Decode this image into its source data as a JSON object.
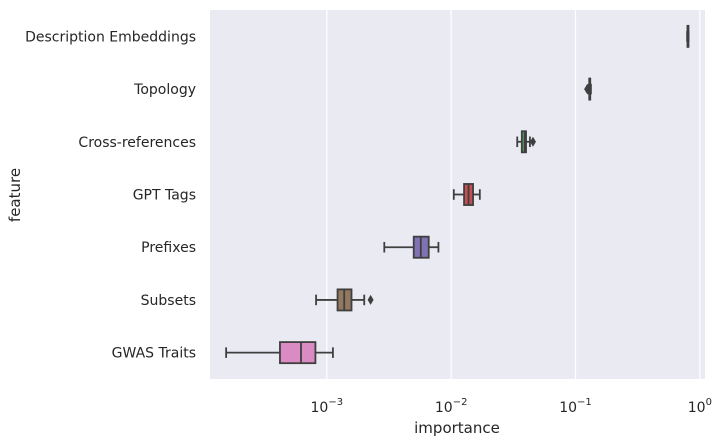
{
  "chart_data": {
    "type": "box",
    "orientation": "horizontal",
    "xscale": "log",
    "xlabel": "importance",
    "ylabel": "feature",
    "xlim": [
      0.000115,
      1.1
    ],
    "grid": true,
    "x_ticks": [
      {
        "base": "10",
        "exp": "−3",
        "value": 0.001
      },
      {
        "base": "10",
        "exp": "−2",
        "value": 0.01
      },
      {
        "base": "10",
        "exp": "−1",
        "value": 0.1
      },
      {
        "base": "10",
        "exp": "0",
        "value": 1
      }
    ],
    "categories": [
      "Description Embeddings",
      "Topology",
      "Cross-references",
      "GPT Tags",
      "Prefixes",
      "Subsets",
      "GWAS Traits"
    ],
    "boxes": [
      {
        "name": "Description Embeddings",
        "color": "#4c72b0",
        "whislo": 0.79,
        "q1": 0.795,
        "med": 0.8,
        "q3": 0.805,
        "whishi": 0.81,
        "fliers": []
      },
      {
        "name": "Topology",
        "color": "#dd8452",
        "whislo": 0.127,
        "q1": 0.129,
        "med": 0.13,
        "q3": 0.131,
        "whishi": 0.133,
        "fliers": [
          0.124
        ]
      },
      {
        "name": "Cross-references",
        "color": "#55a868",
        "whislo": 0.034,
        "q1": 0.037,
        "med": 0.039,
        "q3": 0.04,
        "whishi": 0.043,
        "fliers": [
          0.0455
        ]
      },
      {
        "name": "GPT Tags",
        "color": "#c44e52",
        "whislo": 0.0105,
        "q1": 0.0127,
        "med": 0.0138,
        "q3": 0.015,
        "whishi": 0.017,
        "fliers": []
      },
      {
        "name": "Prefixes",
        "color": "#8172b3",
        "whislo": 0.0029,
        "q1": 0.005,
        "med": 0.0057,
        "q3": 0.0066,
        "whishi": 0.0079,
        "fliers": []
      },
      {
        "name": "Subsets",
        "color": "#937860",
        "whislo": 0.00082,
        "q1": 0.00122,
        "med": 0.00138,
        "q3": 0.00158,
        "whishi": 0.002,
        "fliers": [
          0.00225
        ]
      },
      {
        "name": "GWAS Traits",
        "color": "#da8bc3",
        "whislo": 0.000155,
        "q1": 0.00042,
        "med": 0.00062,
        "q3": 0.00081,
        "whishi": 0.00112,
        "fliers": []
      }
    ]
  }
}
